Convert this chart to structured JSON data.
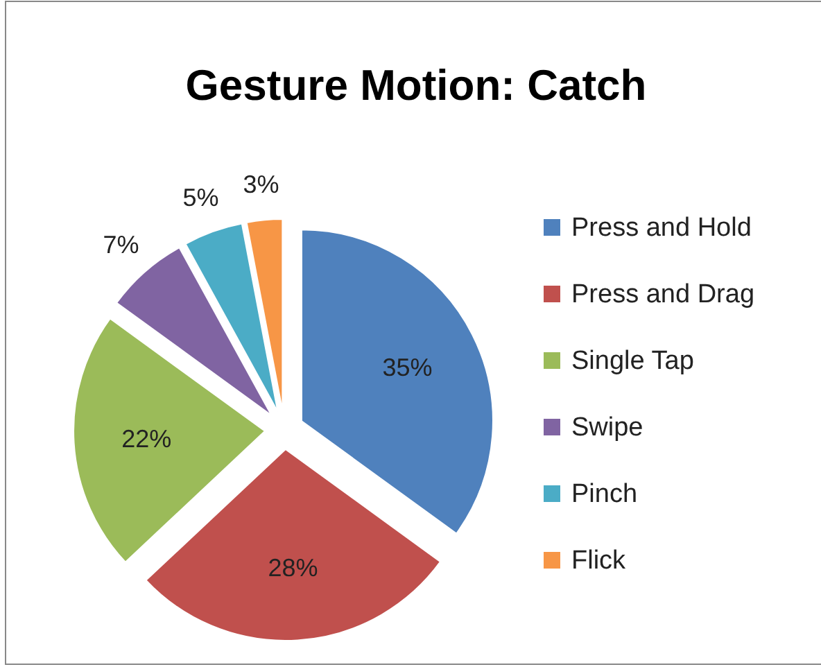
{
  "chart_data": {
    "type": "pie",
    "title": "Gesture Motion: Catch",
    "categories": [
      "Press and Hold",
      "Press and Drag",
      "Single Tap",
      "Swipe",
      "Pinch",
      "Flick"
    ],
    "values": [
      35,
      28,
      22,
      7,
      5,
      3
    ],
    "colors": [
      "#4f81bd",
      "#c0504d",
      "#9bbb59",
      "#8064a2",
      "#4bacc6",
      "#f79646"
    ],
    "value_labels": [
      "35%",
      "28%",
      "22%",
      "7%",
      "5%",
      "3%"
    ],
    "legend": "right"
  }
}
